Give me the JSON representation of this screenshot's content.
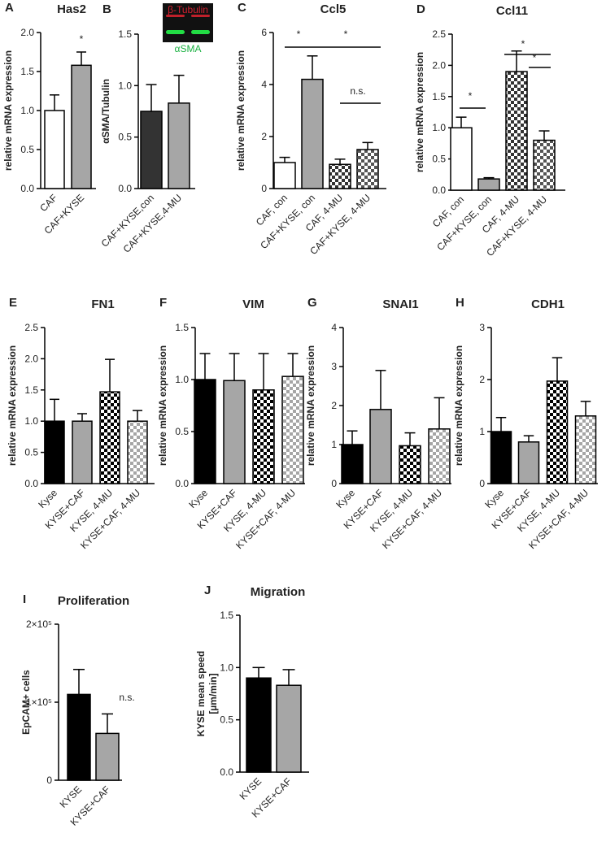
{
  "chart_data": [
    {
      "type": "bar",
      "panel": "A",
      "title": "Has2",
      "ylabel": "relative mRNA expression",
      "categories": [
        "CAF",
        "CAF+KYSE"
      ],
      "values": [
        1.0,
        1.58
      ],
      "errors": [
        0.2,
        0.17
      ],
      "colors": [
        "#ffffff",
        "#a6a6a6"
      ],
      "hatch": [
        false,
        false
      ],
      "ylim": [
        0,
        2
      ],
      "yticks": [
        {
          "value": 0,
          "label": "0.0"
        },
        0.5,
        {
          "value": 1,
          "label": "1.0"
        },
        1.5,
        {
          "value": 2,
          "label": "2.0"
        }
      ],
      "annotations": [
        "*"
      ]
    },
    {
      "type": "bar",
      "panel": "B",
      "ylabel": "αSMA/Tubulin",
      "blot_labels": [
        "β-Tubulin",
        "αSMA"
      ],
      "categories": [
        "CAF+KYSE,con",
        "CAF+KYSE,4-MU"
      ],
      "values": [
        0.75,
        0.83
      ],
      "errors": [
        0.26,
        0.27
      ],
      "colors": [
        "#333333",
        "#a6a6a6"
      ],
      "hatch": [
        false,
        false
      ],
      "ylim": [
        0,
        1.5
      ],
      "yticks": [
        {
          "value": 0,
          "label": "0.0"
        },
        0.5,
        {
          "value": 1,
          "label": "1.0"
        },
        1.5
      ]
    },
    {
      "type": "bar",
      "panel": "C",
      "title": "Ccl5",
      "ylabel": "relative mRNA expression",
      "categories": [
        "CAF, con",
        "CAF+KYSE, con",
        "CAF, 4-MU",
        "CAF+KYSE, 4-MU"
      ],
      "values": [
        1.0,
        4.2,
        0.93,
        1.5
      ],
      "errors": [
        0.2,
        0.9,
        0.2,
        0.27
      ],
      "colors": [
        "#ffffff",
        "#a6a6a6",
        "#333333",
        "#555555"
      ],
      "hatch": [
        false,
        false,
        true,
        true
      ],
      "ylim": [
        0,
        6
      ],
      "yticks": [
        0,
        2,
        4,
        6
      ],
      "annotations": [
        "*",
        "*",
        "n.s."
      ]
    },
    {
      "type": "bar",
      "panel": "D",
      "title": "Ccl11",
      "ylabel": "relative mRNA expression",
      "categories": [
        "CAF, con",
        "CAF+KYSE, con",
        "CAF, 4-MU",
        "CAF+KYSE, 4-MU"
      ],
      "values": [
        1.0,
        0.18,
        1.9,
        0.8
      ],
      "errors": [
        0.17,
        0.02,
        0.33,
        0.15
      ],
      "colors": [
        "#ffffff",
        "#a6a6a6",
        "#333333",
        "#555555"
      ],
      "hatch": [
        false,
        false,
        true,
        true
      ],
      "ylim": [
        0,
        2.5
      ],
      "yticks": [
        {
          "value": 0,
          "label": "0.0"
        },
        0.5,
        {
          "value": 1,
          "label": "1.0"
        },
        1.5,
        {
          "value": 2,
          "label": "2.0"
        },
        2.5
      ],
      "annotations": [
        "*",
        "*",
        "*"
      ]
    },
    {
      "type": "bar",
      "panel": "E",
      "title": "FN1",
      "ylabel": "relative mRNA expression",
      "categories": [
        "Kyse",
        "KYSE+CAF",
        "KYSE, 4-MU",
        "KYSE+CAF, 4-MU"
      ],
      "values": [
        1.0,
        1.0,
        1.47,
        1.0
      ],
      "errors": [
        0.35,
        0.12,
        0.52,
        0.17
      ],
      "colors": [
        "#000000",
        "#a6a6a6",
        "#000000",
        "#a6a6a6"
      ],
      "hatch": [
        false,
        false,
        true,
        true
      ],
      "ylim": [
        0,
        2.5
      ],
      "yticks": [
        {
          "value": 0,
          "label": "0.0"
        },
        0.5,
        {
          "value": 1,
          "label": "1.0"
        },
        1.5,
        {
          "value": 2,
          "label": "2.0"
        },
        2.5
      ]
    },
    {
      "type": "bar",
      "panel": "F",
      "title": "VIM",
      "ylabel": "relative mRNA expression",
      "categories": [
        "Kyse",
        "KYSE+CAF",
        "KYSE, 4-MU",
        "KYSE+CAF, 4-MU"
      ],
      "values": [
        1.0,
        0.99,
        0.9,
        1.03
      ],
      "errors": [
        0.25,
        0.26,
        0.35,
        0.22
      ],
      "colors": [
        "#000000",
        "#a6a6a6",
        "#000000",
        "#a6a6a6"
      ],
      "hatch": [
        false,
        false,
        true,
        true
      ],
      "ylim": [
        0,
        1.5
      ],
      "yticks": [
        {
          "value": 0,
          "label": "0.0"
        },
        0.5,
        {
          "value": 1,
          "label": "1.0"
        },
        1.5
      ]
    },
    {
      "type": "bar",
      "panel": "G",
      "title": "SNAI1",
      "ylabel": "relative mRNA expression",
      "categories": [
        "Kyse",
        "KYSE+CAF",
        "KYSE, 4-MU",
        "KYSE+CAF, 4-MU"
      ],
      "values": [
        1.0,
        1.9,
        0.97,
        1.4
      ],
      "errors": [
        0.35,
        1.0,
        0.33,
        0.8
      ],
      "colors": [
        "#000000",
        "#a6a6a6",
        "#000000",
        "#a6a6a6"
      ],
      "hatch": [
        false,
        false,
        true,
        true
      ],
      "ylim": [
        0,
        4
      ],
      "yticks": [
        0,
        1,
        2,
        3,
        4
      ]
    },
    {
      "type": "bar",
      "panel": "H",
      "title": "CDH1",
      "ylabel": "relative mRNA expression",
      "categories": [
        "Kyse",
        "KYSE+CAF",
        "KYSE, 4-MU",
        "KYSE+CAF, 4-MU"
      ],
      "values": [
        1.0,
        0.8,
        1.97,
        1.3
      ],
      "errors": [
        0.27,
        0.12,
        0.45,
        0.28
      ],
      "colors": [
        "#000000",
        "#a6a6a6",
        "#000000",
        "#a6a6a6"
      ],
      "hatch": [
        false,
        false,
        true,
        true
      ],
      "ylim": [
        0,
        3
      ],
      "yticks": [
        0,
        1,
        2,
        3
      ]
    },
    {
      "type": "bar",
      "panel": "I",
      "title": "Proliferation",
      "ylabel": "EpCAM+ cells",
      "categories": [
        "KYSE",
        "KYSE+CAF"
      ],
      "values": [
        110000,
        60000
      ],
      "errors": [
        32000,
        25000
      ],
      "colors": [
        "#000000",
        "#a6a6a6"
      ],
      "hatch": [
        false,
        false
      ],
      "ylim": [
        0,
        200000
      ],
      "yticks": [
        0,
        {
          "value": 100000,
          "label": "1×10⁵"
        },
        {
          "value": 200000,
          "label": "2×10⁵"
        }
      ],
      "annotations": [
        "n.s."
      ]
    },
    {
      "type": "bar",
      "panel": "J",
      "title": "Migration",
      "ylabel": [
        "KYSE mean speed",
        "[µm/min]"
      ],
      "categories": [
        "KYSE",
        "KYSE+CAF"
      ],
      "values": [
        0.9,
        0.83
      ],
      "errors": [
        0.1,
        0.15
      ],
      "colors": [
        "#000000",
        "#a6a6a6"
      ],
      "hatch": [
        false,
        false
      ],
      "ylim": [
        0,
        1.5
      ],
      "yticks": [
        {
          "value": 0,
          "label": "0.0"
        },
        0.5,
        {
          "value": 1,
          "label": "1.0"
        },
        1.5
      ]
    }
  ]
}
